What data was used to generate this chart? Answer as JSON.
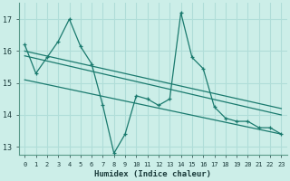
{
  "xlabel": "Humidex (Indice chaleur)",
  "background_color": "#cceee8",
  "grid_color": "#b0ddd8",
  "line_color": "#1a7a6e",
  "xlim": [
    -0.5,
    23.5
  ],
  "ylim": [
    12.75,
    17.5
  ],
  "xticks": [
    0,
    1,
    2,
    3,
    4,
    5,
    6,
    7,
    8,
    9,
    10,
    11,
    12,
    13,
    14,
    15,
    16,
    17,
    18,
    19,
    20,
    21,
    22,
    23
  ],
  "yticks": [
    13,
    14,
    15,
    16,
    17
  ],
  "series1_x": [
    0,
    1,
    2,
    3,
    4,
    5,
    6,
    7,
    8,
    9,
    10,
    11,
    12,
    13,
    14,
    15,
    16,
    17,
    18,
    19,
    20,
    21,
    22,
    23
  ],
  "series1_y": [
    16.2,
    15.3,
    15.8,
    16.3,
    17.0,
    16.15,
    15.6,
    14.3,
    12.8,
    13.4,
    14.6,
    14.5,
    14.3,
    14.5,
    17.2,
    15.8,
    15.45,
    14.25,
    13.9,
    13.8,
    13.8,
    13.6,
    13.6,
    13.4
  ],
  "trend1_x": [
    0,
    23
  ],
  "trend1_y": [
    16.0,
    14.2
  ],
  "trend2_x": [
    0,
    23
  ],
  "trend2_y": [
    15.85,
    14.0
  ],
  "trend3_x": [
    0,
    23
  ],
  "trend3_y": [
    15.1,
    13.4
  ]
}
